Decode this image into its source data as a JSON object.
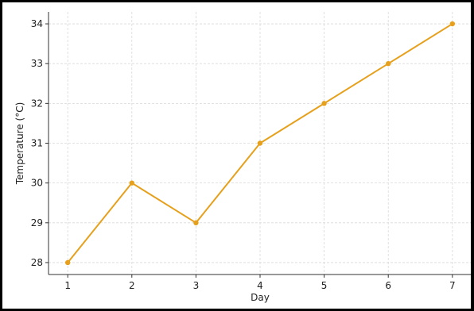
{
  "chart_data": {
    "type": "line",
    "title": "",
    "xlabel": "Day",
    "ylabel": "Temperature (°C)",
    "x": [
      1,
      2,
      3,
      4,
      5,
      6,
      7
    ],
    "series": [
      {
        "values": [
          28,
          30,
          29,
          31,
          32,
          33,
          34
        ]
      }
    ],
    "x_ticks": [
      "1",
      "2",
      "3",
      "4",
      "5",
      "6",
      "7"
    ],
    "y_ticks": [
      "28",
      "29",
      "30",
      "31",
      "32",
      "33",
      "34"
    ],
    "xlim": [
      0.7,
      7.3
    ],
    "ylim": [
      27.7,
      34.3
    ],
    "grid": true,
    "legend": "none",
    "colors": {
      "line": "#E6A01B",
      "grid": "#d9d9d9",
      "axis": "#333333"
    }
  }
}
